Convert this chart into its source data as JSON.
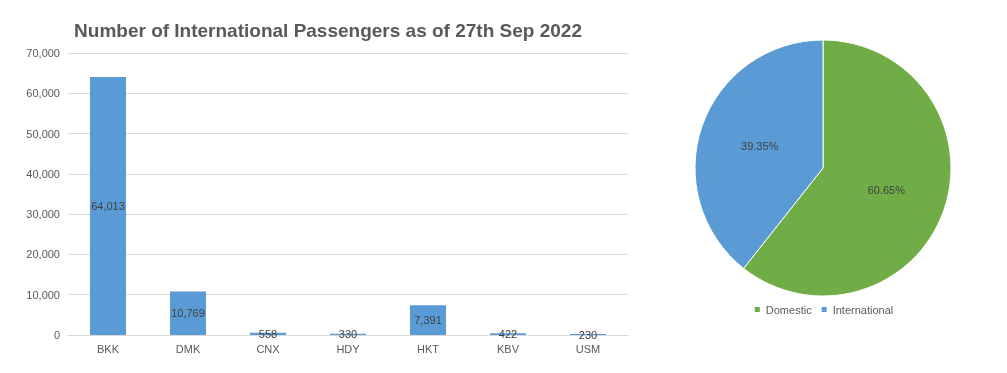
{
  "chart_data": [
    {
      "type": "bar",
      "title": "Number of International Passengers as of 27th Sep 2022",
      "categories": [
        "BKK",
        "DMK",
        "CNX",
        "HDY",
        "HKT",
        "KBV",
        "USM"
      ],
      "values": [
        64013,
        10769,
        558,
        330,
        7391,
        422,
        230
      ],
      "value_labels": [
        "64,013",
        "10,769",
        "558",
        "330",
        "7,391",
        "422",
        "230"
      ],
      "color": "#5b9bd5",
      "ylim": [
        0,
        70000
      ],
      "yticks": [
        0,
        {
          "value": 10000,
          "label": "10,000"
        },
        {
          "value": 20000,
          "label": "20,000"
        },
        {
          "value": 30000,
          "label": "30,000"
        },
        {
          "value": 40000,
          "label": "40,000"
        },
        {
          "value": 50000,
          "label": "50,000"
        },
        {
          "value": 60000,
          "label": "60,000"
        },
        {
          "value": 70000,
          "label": "70,000"
        }
      ],
      "grid": "y",
      "legend": false
    },
    {
      "type": "pie",
      "categories": [
        "Domestic",
        "International"
      ],
      "values": [
        60.65,
        39.35
      ],
      "value_labels": [
        "60.65%",
        "39.35%"
      ],
      "colors": [
        "#70ad47",
        "#5b9bd5"
      ],
      "legend": "bottom"
    }
  ]
}
